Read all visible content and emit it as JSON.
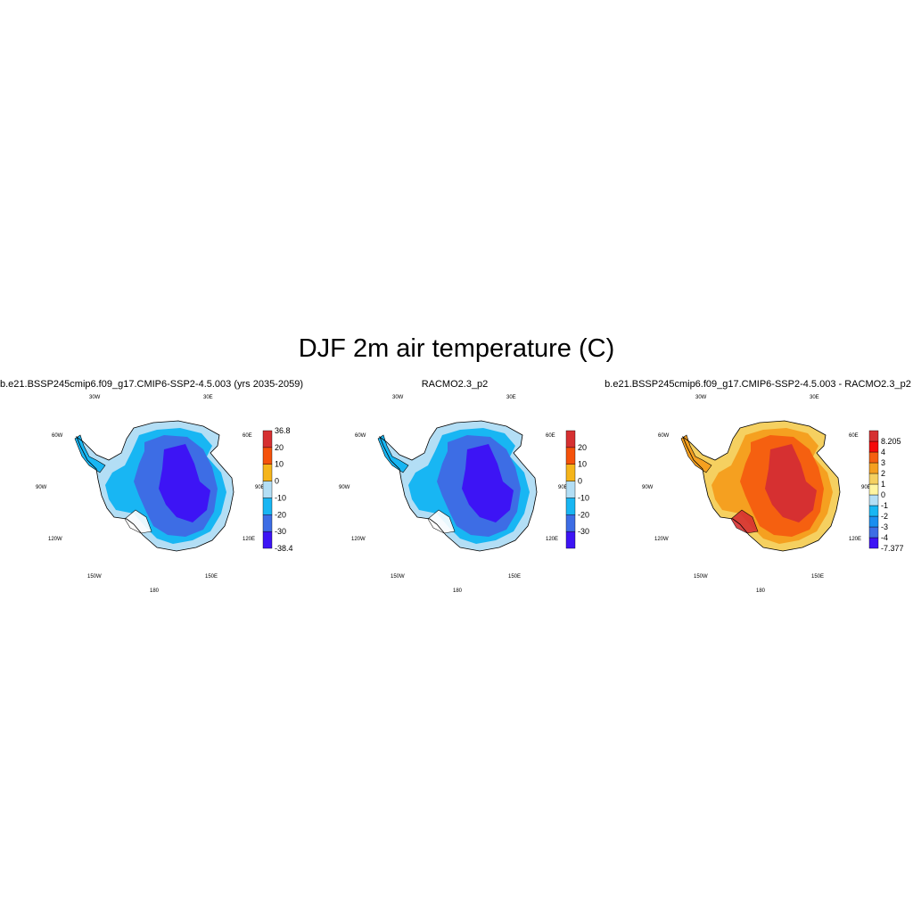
{
  "title": "DJF 2m air temperature (C)",
  "panels": [
    {
      "title": "b.e21.BSSP245cmip6.f09_g17.CMIP6-SSP2-4.5.003 (yrs 2035-2059)",
      "colorbar": {
        "colors": [
          "#3d14f5",
          "#3d6de5",
          "#18b6f3",
          "#b3def5",
          "#f5b51b",
          "#f5520b",
          "#d63031"
        ],
        "labels": [
          "-38.4",
          "-30",
          "-20",
          "-10",
          "0",
          "10",
          "20",
          "36.8"
        ]
      },
      "map_colors": {
        "coast": "#b3def5",
        "mid": "#18b6f3",
        "inner": "#3d6de5",
        "core": "#3d14f5"
      }
    },
    {
      "title": "RACMO2.3_p2",
      "colorbar": {
        "colors": [
          "#3d14f5",
          "#3d6de5",
          "#18b6f3",
          "#b3def5",
          "#f5b51b",
          "#f5520b",
          "#d63031"
        ],
        "labels": [
          "",
          "-30",
          "-20",
          "-10",
          "0",
          "10",
          "20",
          ""
        ]
      },
      "map_colors": {
        "coast": "#b3def5",
        "mid": "#18b6f3",
        "inner": "#3d6de5",
        "core": "#3d14f5"
      }
    },
    {
      "title": "b.e21.BSSP245cmip6.f09_g17.CMIP6-SSP2-4.5.003 - RACMO2.3_p2",
      "colorbar": {
        "colors": [
          "#3d14f5",
          "#3d6de5",
          "#1a8ef0",
          "#18b6f3",
          "#b3def5",
          "#fff5a0",
          "#f5d060",
          "#f5a020",
          "#f56010",
          "#f50a0a",
          "#d63031"
        ],
        "labels": [
          "-7.377",
          "-4",
          "-3",
          "-2",
          "-1",
          "0",
          "1",
          "2",
          "3",
          "4",
          "8.205"
        ]
      },
      "map_colors": {
        "coast": "#f5d060",
        "mid": "#f5a020",
        "inner": "#f56010",
        "core": "#d63031"
      }
    }
  ],
  "graticule": {
    "lon_labels": [
      "30W",
      "30E",
      "60W",
      "60E",
      "90W",
      "90E",
      "120W",
      "120E",
      "150W",
      "150E",
      "180"
    ]
  }
}
